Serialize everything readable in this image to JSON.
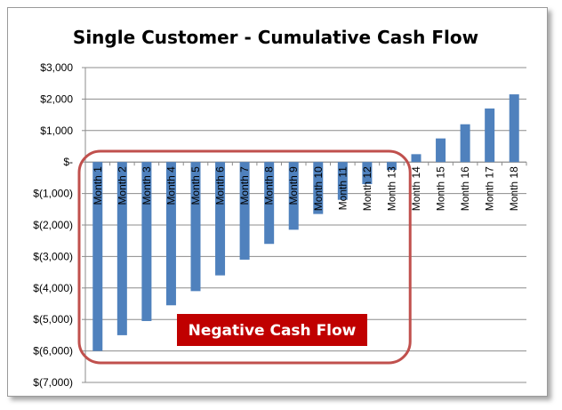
{
  "chart_data": {
    "type": "bar",
    "title": "Single Customer - Cumulative Cash Flow",
    "xlabel": "",
    "ylabel": "",
    "categories": [
      "Month 1",
      "Month 2",
      "Month 3",
      "Month 4",
      "Month 5",
      "Month 6",
      "Month 7",
      "Month 8",
      "Month 9",
      "Month 10",
      "Month 11",
      "Month 12",
      "Month 13",
      "Month 14",
      "Month 15",
      "Month 16",
      "Month 17",
      "Month 18"
    ],
    "values": [
      -6000,
      -5500,
      -5050,
      -4550,
      -4100,
      -3600,
      -3100,
      -2600,
      -2150,
      -1650,
      -1200,
      -700,
      -250,
      250,
      750,
      1200,
      1700,
      2150
    ],
    "ylim": [
      -7000,
      3000
    ],
    "yticks": [
      3000,
      2000,
      1000,
      0,
      -1000,
      -2000,
      -3000,
      -4000,
      -5000,
      -6000,
      -7000
    ],
    "ytick_labels": [
      "$3,000",
      "$2,000",
      "$1,000",
      "$-",
      "$(1,000)",
      "$(2,000)",
      "$(3,000)",
      "$(4,000)",
      "$(5,000)",
      "$(6,000)",
      "$(7,000)"
    ],
    "grid": true,
    "legend": "none",
    "bar_color": "#4f81bd",
    "annotation": {
      "text": "Negative Cash Flow",
      "box_color": "#c00000",
      "outline_color": "#c0504d",
      "spans": [
        "Month 1",
        "Month 13"
      ]
    }
  }
}
